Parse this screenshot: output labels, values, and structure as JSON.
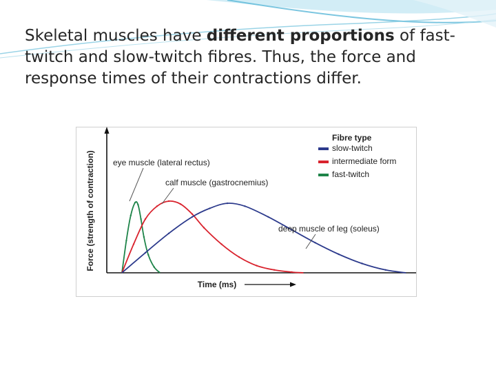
{
  "slide": {
    "text_before": "Skeletal muscles have ",
    "text_bold": "different proportions",
    "text_after": " of fast-twitch and slow-twitch fibres. Thus, the force and response times of their contractions differ."
  },
  "chart_data": {
    "type": "line",
    "title": "",
    "xlabel": "Time (ms)",
    "ylabel": "Force (strength of contraction)",
    "xlim": [
      0,
      100
    ],
    "ylim": [
      0,
      1
    ],
    "grid": false,
    "legend": {
      "title": "Fibre type",
      "placement": "top-right",
      "entries": [
        {
          "label": "slow-twitch",
          "color": "#2c3a8c"
        },
        {
          "label": "intermediate form",
          "color": "#d9232e"
        },
        {
          "label": "fast-twitch",
          "color": "#1e8449"
        }
      ]
    },
    "series": [
      {
        "legend": "fast-twitch",
        "color": "#1e8449",
        "annotation": "eye muscle (lateral rectus)",
        "x": [
          0,
          1.5,
          3,
          4.5,
          5.5,
          6.5,
          7.5,
          9,
          11,
          13
        ],
        "y": [
          0,
          0.45,
          0.8,
          0.98,
          0.95,
          0.75,
          0.5,
          0.25,
          0.08,
          0
        ]
      },
      {
        "legend": "intermediate form",
        "color": "#d9232e",
        "annotation": "calf muscle (gastrocnemius)",
        "x": [
          0,
          4,
          8,
          12,
          16,
          20,
          24,
          28,
          34,
          40,
          46,
          52,
          58,
          62
        ],
        "y": [
          0,
          0.4,
          0.75,
          0.93,
          1.0,
          0.96,
          0.82,
          0.63,
          0.4,
          0.22,
          0.1,
          0.04,
          0.01,
          0
        ]
      },
      {
        "legend": "slow-twitch",
        "color": "#2c3a8c",
        "annotation": "deep muscle of leg (soleus)",
        "x": [
          0,
          8,
          16,
          24,
          30,
          36,
          42,
          50,
          58,
          66,
          74,
          82,
          90,
          97
        ],
        "y": [
          0,
          0.28,
          0.55,
          0.78,
          0.9,
          0.97,
          0.93,
          0.78,
          0.6,
          0.42,
          0.26,
          0.13,
          0.04,
          0
        ]
      }
    ]
  }
}
